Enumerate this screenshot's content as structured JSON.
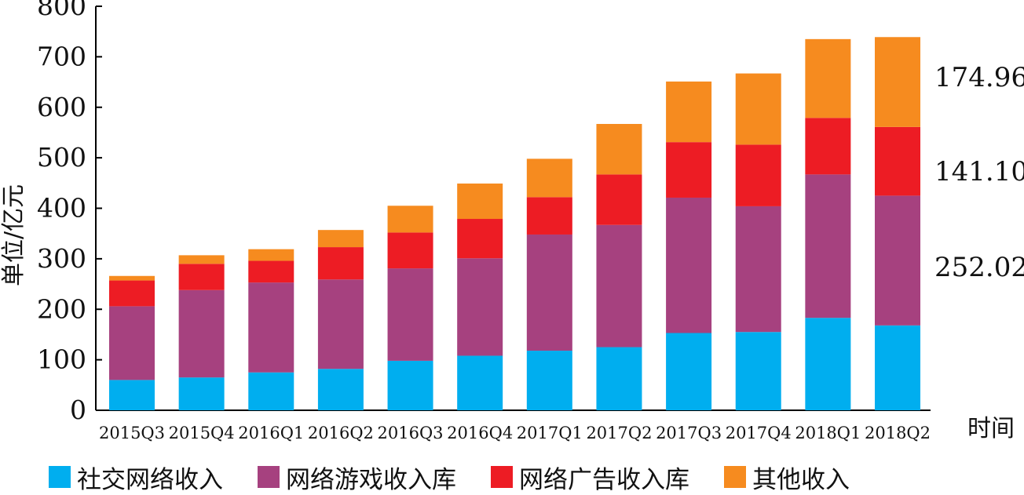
{
  "chart_data": {
    "type": "bar",
    "stacked": true,
    "ylabel": "单位/亿元",
    "xlabel": "时间",
    "ylim": [
      0,
      800
    ],
    "yticks": [
      0,
      100,
      200,
      300,
      400,
      500,
      600,
      700,
      800
    ],
    "categories": [
      "2015Q3",
      "2015Q4",
      "2016Q1",
      "2016Q2",
      "2016Q3",
      "2016Q4",
      "2017Q1",
      "2017Q2",
      "2017Q3",
      "2017Q4",
      "2018Q1",
      "2018Q2"
    ],
    "series": [
      {
        "name": "社交网络收入",
        "color": "#00AEEF",
        "values": [
          60,
          65,
          75,
          82,
          98,
          108,
          118,
          125,
          153,
          155,
          183,
          168
        ]
      },
      {
        "name": "网络游戏收入库",
        "color": "#A6417F",
        "values": [
          146,
          173,
          178,
          177,
          183,
          193,
          230,
          242,
          268,
          249,
          284,
          257
        ]
      },
      {
        "name": "网络广告收入库",
        "color": "#ED1C24",
        "values": [
          51,
          52,
          43,
          64,
          71,
          78,
          74,
          100,
          110,
          122,
          112,
          136
        ]
      },
      {
        "name": "其他收入",
        "color": "#F68B1F",
        "values": [
          9,
          17,
          23,
          34,
          53,
          70,
          76,
          100,
          120,
          141,
          156,
          178
        ]
      }
    ],
    "annotations": [
      "174.96",
      "141.10",
      "252.02"
    ],
    "grid": false
  }
}
